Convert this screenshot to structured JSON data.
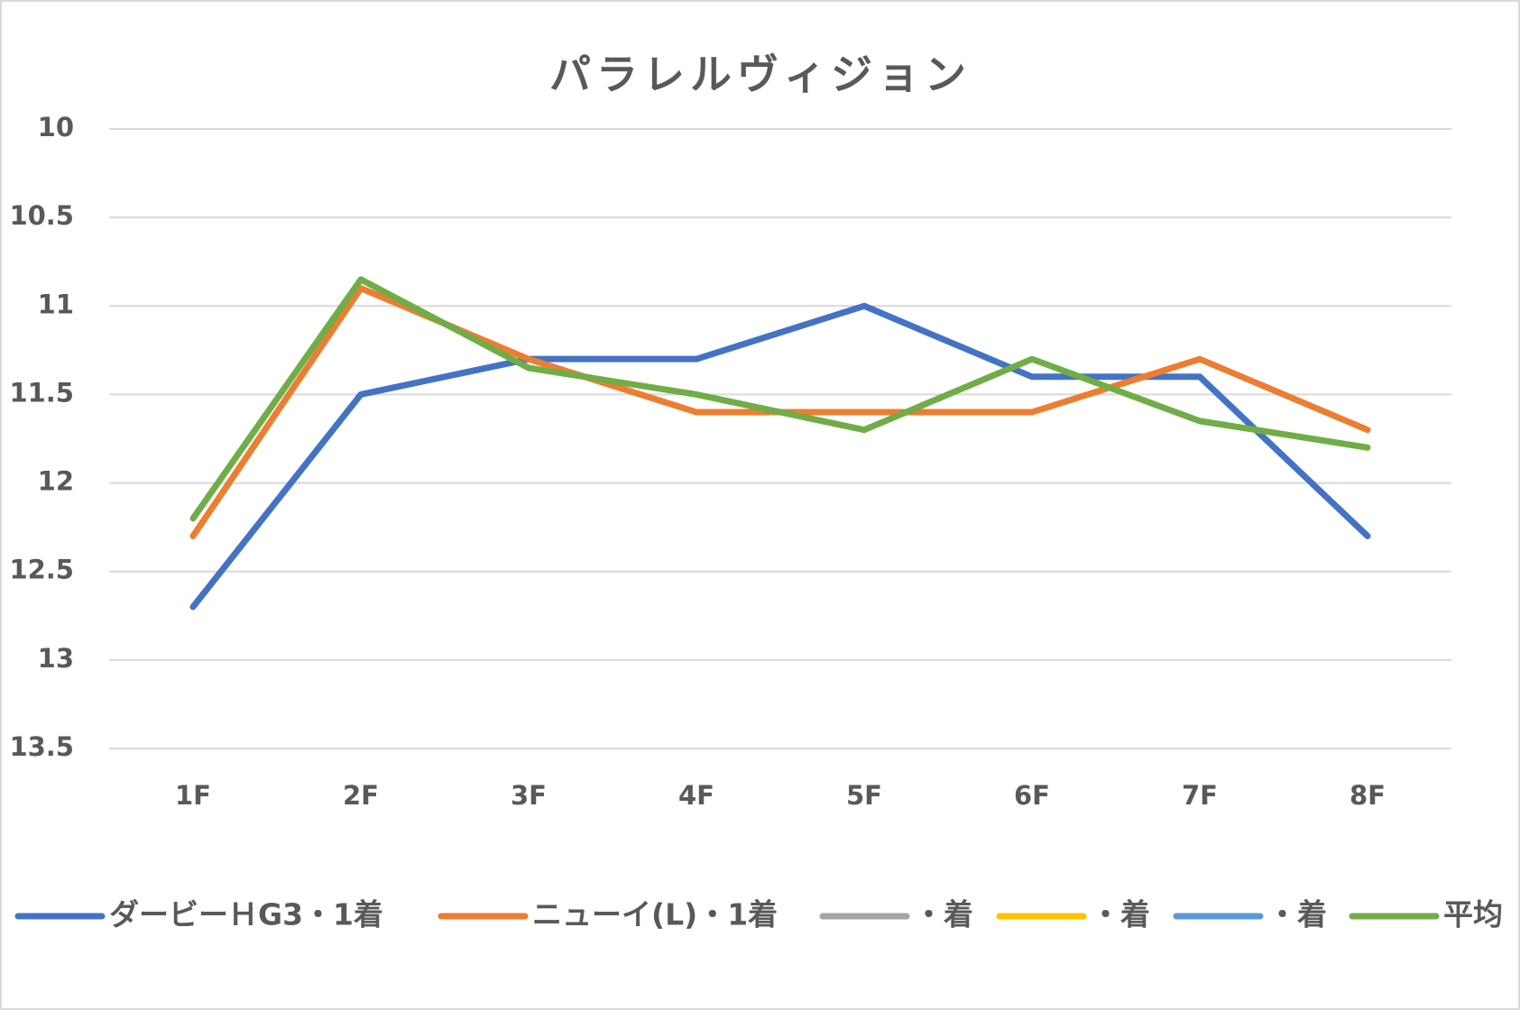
{
  "chart_data": {
    "type": "line",
    "title": "パラレルヴィジョン",
    "categories": [
      "1F",
      "2F",
      "3F",
      "4F",
      "5F",
      "6F",
      "7F",
      "8F"
    ],
    "series": [
      {
        "name": "ダービーＨG3・1着",
        "color": "#4472c4",
        "values": [
          12.7,
          11.5,
          11.3,
          11.3,
          11.0,
          11.4,
          11.4,
          12.3
        ]
      },
      {
        "name": "ニューイ(L)・1着",
        "color": "#ed7d31",
        "values": [
          12.3,
          10.9,
          11.3,
          11.6,
          11.6,
          11.6,
          11.3,
          11.7
        ]
      },
      {
        "name": "・着",
        "color": "#a5a5a5",
        "values": [
          null,
          null,
          null,
          null,
          null,
          null,
          null,
          null
        ]
      },
      {
        "name": "・着",
        "color": "#ffc000",
        "values": [
          null,
          null,
          null,
          null,
          null,
          null,
          null,
          null
        ]
      },
      {
        "name": "・着",
        "color": "#5b9bd5",
        "values": [
          null,
          null,
          null,
          null,
          null,
          null,
          null,
          null
        ]
      },
      {
        "name": "平均",
        "color": "#70ad47",
        "values": [
          12.2,
          10.85,
          11.35,
          11.5,
          11.7,
          11.3,
          11.65,
          11.8
        ]
      }
    ],
    "ylim": [
      10,
      13.5
    ],
    "y_inverted": true,
    "yticks": [
      10,
      10.5,
      11,
      11.5,
      12,
      12.5,
      13,
      13.5
    ],
    "grid": true,
    "legend": "bottom"
  }
}
